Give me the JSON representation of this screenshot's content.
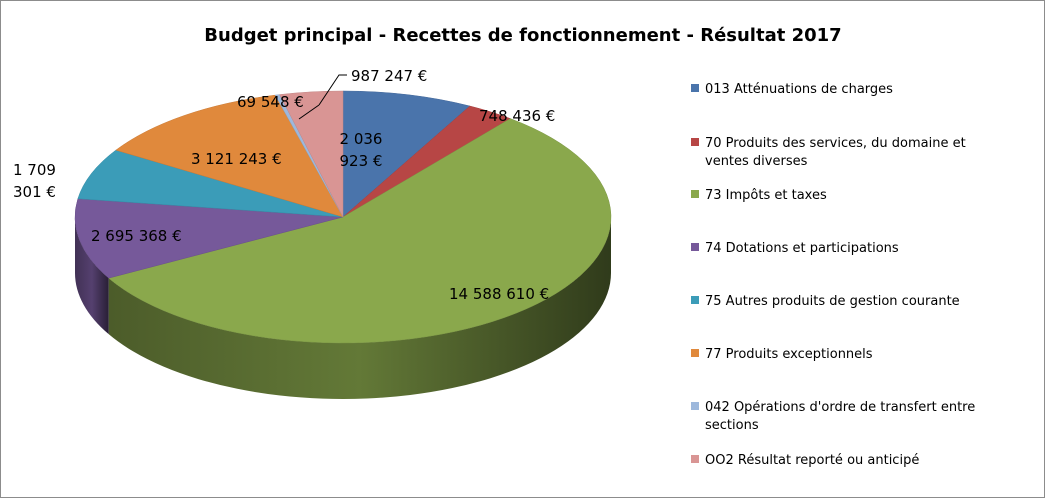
{
  "chart_data": {
    "type": "pie",
    "title": "Budget principal - Recettes de fonctionnement - Résultat 2017",
    "legend_position": "right",
    "three_d": true,
    "slices": [
      {
        "code": "013",
        "label": "013 Atténuations de charges",
        "value": 2036923,
        "value_label": "2 036 923 €",
        "color": "#4a74ab"
      },
      {
        "code": "70",
        "label": "70 Produits des services, du domaine et ventes diverses",
        "value": 748436,
        "value_label": "748 436 €",
        "color": "#b74645"
      },
      {
        "code": "73",
        "label": "73 Impôts et taxes",
        "value": 14588610,
        "value_label": "14 588 610 €",
        "color": "#8aa84c"
      },
      {
        "code": "74",
        "label": "74 Dotations et participations",
        "value": 2695368,
        "value_label": "2 695 368 €",
        "color": "#76599a"
      },
      {
        "code": "75",
        "label": "75 Autres produits de gestion courante",
        "value": 1709301,
        "value_label": "1 709 301 €",
        "color": "#3b9cb8"
      },
      {
        "code": "77",
        "label": "77 Produits exceptionnels",
        "value": 3121243,
        "value_label": "3 121 243 €",
        "color": "#e0893c"
      },
      {
        "code": "042",
        "label": "042 Opérations d'ordre de transfert entre sections",
        "value": 69548,
        "value_label": "69 548 €",
        "color": "#9db8dc"
      },
      {
        "code": "002",
        "label": "OO2 Résultat reporté ou anticipé",
        "value": 987247,
        "value_label": "987 247 €",
        "color": "#d99594"
      }
    ]
  }
}
